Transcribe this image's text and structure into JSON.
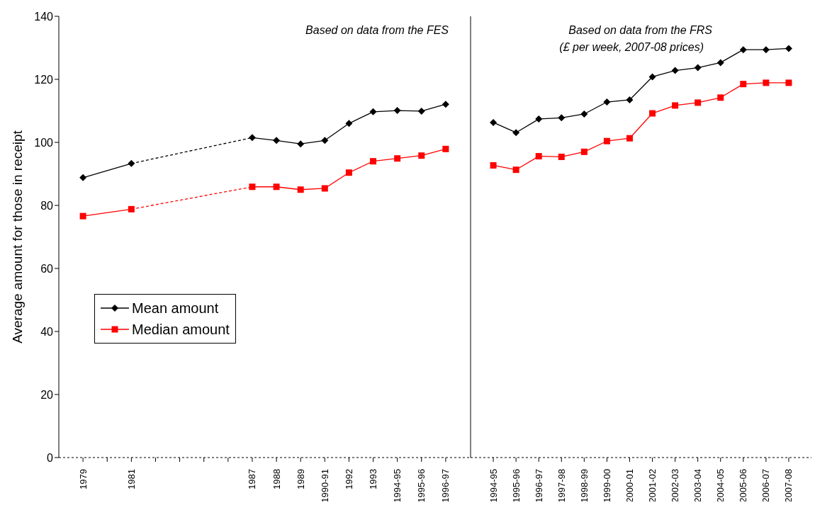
{
  "chart_data": [
    {
      "type": "line",
      "ylabel": "Average amount for those in receipt",
      "annotations": [
        "Based on data from the FES"
      ],
      "categories": [
        "1979",
        null,
        "1981",
        null,
        null,
        null,
        null,
        "1987",
        "1988",
        "1989",
        "1990-91",
        "1992",
        "1993",
        "1994-95",
        "1995-96",
        "1996-97"
      ],
      "ylim": [
        0,
        140
      ],
      "yticks": [
        0,
        20,
        40,
        60,
        80,
        100,
        120,
        140
      ],
      "legend": "center left",
      "line_style": "solid",
      "series": [
        {
          "name": "Mean amount",
          "color": "#000000",
          "marker": "diamond",
          "values": [
            null,
            null,
            null,
            null,
            null,
            null,
            null,
            101.5,
            100.6,
            99.5,
            100.6,
            106,
            109.7,
            110.1,
            109.9,
            112.1
          ]
        },
        {
          "name": "Median amount",
          "color": "#ff0000",
          "marker": "square",
          "values": [
            null,
            null,
            null,
            null,
            null,
            null,
            null,
            85.9,
            85.9,
            85,
            85.4,
            90.4,
            94,
            94.9,
            95.8,
            97.9
          ]
        },
        {
          "color": "#000000",
          "marker": "diamond",
          "values": [
            88.8,
            null,
            93.3,
            null,
            null,
            null,
            null,
            null,
            null,
            null,
            null,
            null,
            null,
            null,
            null,
            null
          ]
        },
        {
          "color": "#ff0000",
          "marker": "square",
          "values": [
            76.6,
            null,
            78.8,
            null,
            null,
            null,
            null,
            null,
            null,
            null,
            null,
            null,
            null,
            null,
            null,
            null
          ]
        },
        {
          "color": "#000000",
          "line_style": "dashed",
          "values": [
            null,
            null,
            93.3,
            null,
            null,
            null,
            null,
            101.5,
            null,
            null,
            null,
            null,
            null,
            null,
            null,
            null
          ]
        },
        {
          "color": "#ff0000",
          "line_style": "dashed",
          "values": [
            null,
            null,
            78.8,
            null,
            null,
            null,
            null,
            85.9,
            null,
            null,
            null,
            null,
            null,
            null,
            null,
            null
          ]
        }
      ]
    },
    {
      "type": "line",
      "annotations": [
        "Based on data from the FRS",
        "(£ per week, 2007-08 prices)"
      ],
      "categories": [
        "1994-95",
        "1995-96",
        "1996-97",
        "1997-98",
        "1998-99",
        "1999-00",
        "2000-01",
        "2001-02",
        "2002-03",
        "2003-04",
        "2004-05",
        "2005-06",
        "2006-07",
        "2007-08"
      ],
      "ylim": [
        0,
        140
      ],
      "tick_labels": "x",
      "line_style": "solid",
      "series": [
        {
          "color": "#000000",
          "marker": "diamond",
          "values": [
            106.3,
            103.1,
            107.4,
            107.8,
            109,
            112.8,
            113.5,
            120.8,
            122.8,
            123.7,
            125.3,
            129.4,
            129.4,
            129.8
          ]
        },
        {
          "color": "#ff0000",
          "marker": "square",
          "values": [
            92.7,
            91.3,
            95.6,
            95.4,
            97,
            100.4,
            101.3,
            109.2,
            111.7,
            112.6,
            114.2,
            118.5,
            118.9,
            118.9
          ]
        }
      ]
    }
  ]
}
